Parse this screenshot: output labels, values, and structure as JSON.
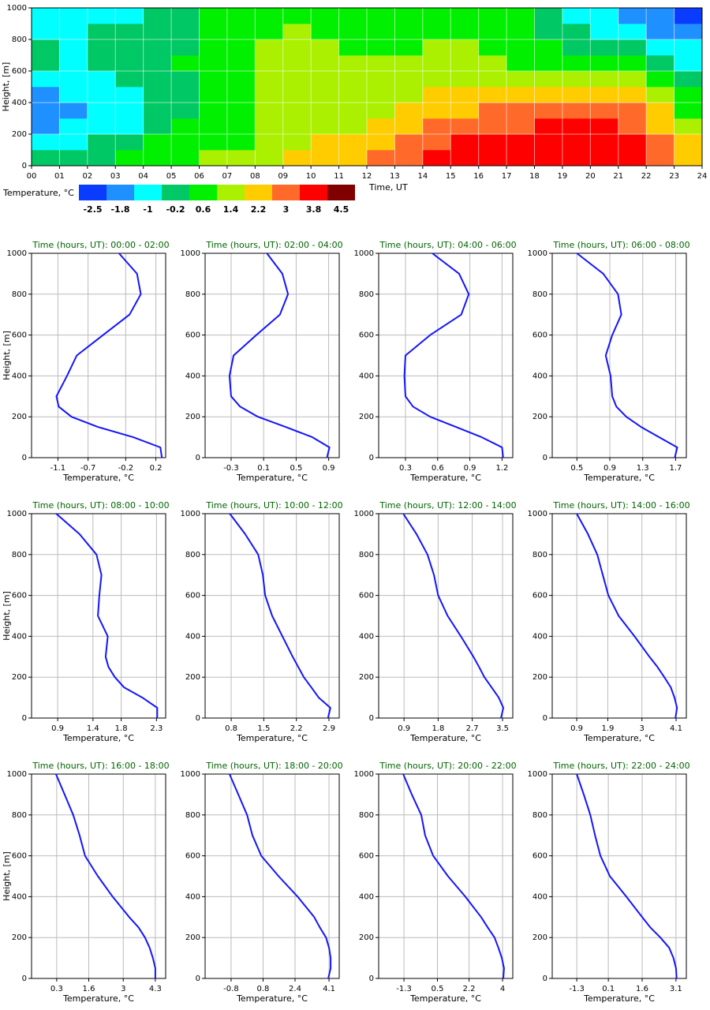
{
  "chart_data": [
    {
      "type": "heatmap",
      "xlabel": "Time, UT",
      "ylabel": "Height, [m]",
      "xlim": [
        0,
        24
      ],
      "ylim": [
        0,
        1000
      ],
      "xticks": [
        {
          "value": 0,
          "label": "00"
        },
        {
          "value": 1,
          "label": "01"
        },
        {
          "value": 2,
          "label": "02"
        },
        {
          "value": 3,
          "label": "03"
        },
        {
          "value": 4,
          "label": "04"
        },
        {
          "value": 5,
          "label": "05"
        },
        {
          "value": 6,
          "label": "06"
        },
        {
          "value": 7,
          "label": "07"
        },
        {
          "value": 8,
          "label": "08"
        },
        {
          "value": 9,
          "label": "09"
        },
        10,
        11,
        12,
        13,
        14,
        15,
        16,
        17,
        18,
        19,
        20,
        21,
        22,
        23,
        24
      ],
      "yticks": [
        0,
        200,
        400,
        600,
        800,
        1000
      ],
      "xbins": [
        0,
        1,
        2,
        3,
        4,
        5,
        6,
        7,
        8,
        9,
        10,
        11,
        12,
        13,
        14,
        15,
        16,
        17,
        18,
        19,
        20,
        21,
        22,
        23,
        24
      ],
      "ybins": [
        0,
        100,
        200,
        300,
        400,
        500,
        600,
        700,
        800,
        900,
        1000
      ],
      "values": [
        [
          -0.2,
          -1.0,
          -1.8,
          -1.8,
          -1.8,
          -1.0,
          -0.2,
          -0.2,
          -1.0,
          -1.0
        ],
        [
          -0.2,
          -1.0,
          -1.0,
          -1.8,
          -1.0,
          -1.0,
          -1.0,
          -1.0,
          -1.0,
          -1.0
        ],
        [
          -0.2,
          -0.2,
          -1.0,
          -1.0,
          -1.0,
          -1.0,
          -0.2,
          -0.2,
          -0.2,
          -1.0
        ],
        [
          0.6,
          -0.2,
          -1.0,
          -1.0,
          -1.0,
          -0.2,
          -0.2,
          -0.2,
          -0.2,
          -1.0
        ],
        [
          0.6,
          0.6,
          -0.2,
          -0.2,
          -0.2,
          -0.2,
          -0.2,
          -0.2,
          -0.2,
          -0.2
        ],
        [
          0.6,
          0.6,
          0.6,
          -0.2,
          -0.2,
          -0.2,
          0.6,
          -0.2,
          -0.2,
          -0.2
        ],
        [
          1.4,
          0.6,
          0.6,
          0.6,
          0.6,
          0.6,
          0.6,
          0.6,
          0.6,
          0.6
        ],
        [
          1.4,
          0.6,
          0.6,
          0.6,
          0.6,
          0.6,
          0.6,
          0.6,
          0.6,
          0.6
        ],
        [
          1.4,
          1.4,
          1.4,
          1.4,
          1.4,
          1.4,
          1.4,
          1.4,
          0.6,
          0.6
        ],
        [
          2.2,
          1.4,
          1.4,
          1.4,
          1.4,
          1.4,
          1.4,
          1.4,
          1.4,
          0.6
        ],
        [
          2.2,
          2.2,
          1.4,
          1.4,
          1.4,
          1.4,
          1.4,
          1.4,
          0.6,
          0.6
        ],
        [
          2.2,
          2.2,
          1.4,
          1.4,
          1.4,
          1.4,
          1.4,
          0.6,
          0.6,
          0.6
        ],
        [
          3.0,
          2.2,
          2.2,
          1.4,
          1.4,
          1.4,
          1.4,
          0.6,
          0.6,
          0.6
        ],
        [
          3.0,
          3.0,
          2.2,
          2.2,
          1.4,
          1.4,
          1.4,
          0.6,
          0.6,
          0.6
        ],
        [
          3.8,
          3.0,
          3.0,
          2.2,
          2.2,
          1.4,
          1.4,
          1.4,
          0.6,
          0.6
        ],
        [
          3.8,
          3.8,
          3.0,
          2.2,
          2.2,
          1.4,
          1.4,
          1.4,
          0.6,
          0.6
        ],
        [
          3.8,
          3.8,
          3.0,
          3.0,
          2.2,
          1.4,
          1.4,
          0.6,
          0.6,
          0.6
        ],
        [
          3.8,
          3.8,
          3.0,
          3.0,
          2.2,
          1.4,
          0.6,
          0.6,
          0.6,
          0.6
        ],
        [
          3.8,
          3.8,
          3.8,
          3.0,
          2.2,
          1.4,
          0.6,
          0.6,
          -0.2,
          -0.2
        ],
        [
          3.8,
          3.8,
          3.8,
          3.0,
          2.2,
          1.4,
          0.6,
          -0.2,
          -0.2,
          -1.0
        ],
        [
          3.8,
          3.8,
          3.8,
          3.0,
          2.2,
          1.4,
          0.6,
          -0.2,
          -1.0,
          -1.0
        ],
        [
          3.8,
          3.8,
          3.0,
          3.0,
          2.2,
          1.4,
          0.6,
          -0.2,
          -1.0,
          -1.8
        ],
        [
          3.0,
          3.0,
          2.2,
          2.2,
          1.4,
          0.6,
          -0.2,
          -1.0,
          -1.8,
          -1.8
        ],
        [
          2.2,
          2.2,
          1.4,
          0.6,
          0.6,
          -0.2,
          -1.0,
          -1.0,
          -1.8,
          -2.5
        ]
      ],
      "grid": true,
      "colorbar": {
        "label": "Temperature, °C",
        "levels": [
          -2.5,
          -1.8,
          -1.0,
          -0.2,
          0.6,
          1.4,
          2.2,
          3.0,
          3.8,
          4.5
        ],
        "colors": [
          "#0a3cff",
          "#1e90ff",
          "#00ffff",
          "#00c864",
          "#00f000",
          "#aaf000",
          "#ffcc00",
          "#ff6a2a",
          "#ff0000",
          "#800000"
        ]
      }
    },
    {
      "type": "line",
      "title": "Time (hours, UT): 00:00 - 02:00",
      "xlabel": "Temperature, °C",
      "ylabel": "Height, [m]",
      "color": "#1414ff",
      "grid": true,
      "xlim": [
        -1.45,
        0.33
      ],
      "xticks": [
        -1.1,
        -0.7,
        -0.2,
        0.2
      ],
      "ylim": [
        0,
        1000
      ],
      "yticks": [
        0,
        200,
        400,
        600,
        800,
        1000
      ],
      "heights": [
        0,
        50,
        100,
        150,
        200,
        250,
        300,
        400,
        500,
        600,
        700,
        800,
        900,
        1000
      ],
      "values": [
        0.28,
        0.26,
        -0.1,
        -0.57,
        -0.92,
        -1.09,
        -1.12,
        -0.98,
        -0.85,
        -0.5,
        -0.15,
        0.0,
        -0.05,
        -0.29
      ]
    },
    {
      "type": "line",
      "title": "Time (hours, UT): 02:00 - 04:00",
      "xlabel": "Temperature, °C",
      "color": "#1414ff",
      "grid": true,
      "xlim": [
        -0.62,
        1.03
      ],
      "xticks": [
        -0.3,
        0.1,
        0.5,
        0.9
      ],
      "ylim": [
        0,
        1000
      ],
      "yticks": [
        0,
        200,
        400,
        600,
        800,
        1000
      ],
      "heights": [
        0,
        50,
        100,
        150,
        200,
        250,
        300,
        400,
        500,
        600,
        700,
        800,
        900,
        1000
      ],
      "values": [
        0.88,
        0.91,
        0.7,
        0.37,
        0.03,
        -0.19,
        -0.3,
        -0.32,
        -0.27,
        0.01,
        0.3,
        0.4,
        0.33,
        0.14
      ]
    },
    {
      "type": "line",
      "title": "Time (hours, UT): 04:00 - 06:00",
      "xlabel": "Temperature, °C",
      "color": "#1414ff",
      "grid": true,
      "xlim": [
        0.05,
        1.3
      ],
      "xticks": [
        0.3,
        0.6,
        0.9,
        1.2
      ],
      "ylim": [
        0,
        1000
      ],
      "yticks": [
        0,
        200,
        400,
        600,
        800,
        1000
      ],
      "heights": [
        0,
        50,
        100,
        150,
        200,
        250,
        300,
        400,
        500,
        600,
        700,
        800,
        900,
        1000
      ],
      "values": [
        1.21,
        1.2,
        1.01,
        0.77,
        0.53,
        0.37,
        0.3,
        0.29,
        0.3,
        0.53,
        0.82,
        0.89,
        0.8,
        0.55
      ]
    },
    {
      "type": "line",
      "title": "Time (hours, UT): 06:00 - 08:00",
      "xlabel": "Temperature, °C",
      "color": "#1414ff",
      "grid": true,
      "xlim": [
        0.2,
        1.83
      ],
      "xticks": [
        0.5,
        0.9,
        1.3,
        1.7
      ],
      "ylim": [
        0,
        1000
      ],
      "yticks": [
        0,
        200,
        400,
        600,
        800,
        1000
      ],
      "heights": [
        0,
        50,
        100,
        150,
        200,
        250,
        300,
        400,
        500,
        600,
        700,
        800,
        900,
        1000
      ],
      "values": [
        1.69,
        1.72,
        1.5,
        1.28,
        1.1,
        0.98,
        0.93,
        0.91,
        0.85,
        0.93,
        1.04,
        1.0,
        0.82,
        0.5
      ]
    },
    {
      "type": "line",
      "title": "Time (hours, UT): 08:00 - 10:00",
      "xlabel": "Temperature, °C",
      "ylabel": "Height, [m]",
      "color": "#1414ff",
      "grid": true,
      "xlim": [
        0.53,
        2.43
      ],
      "xticks": [
        0.9,
        1.4,
        1.8,
        2.3
      ],
      "ylim": [
        0,
        1000
      ],
      "yticks": [
        0,
        200,
        400,
        600,
        800,
        1000
      ],
      "heights": [
        0,
        50,
        100,
        150,
        200,
        250,
        300,
        400,
        500,
        600,
        700,
        800,
        900,
        1000
      ],
      "values": [
        2.31,
        2.31,
        2.1,
        1.84,
        1.71,
        1.62,
        1.58,
        1.61,
        1.47,
        1.49,
        1.52,
        1.45,
        1.21,
        0.88
      ]
    },
    {
      "type": "line",
      "title": "Time (hours, UT): 10:00 - 12:00",
      "xlabel": "Temperature, °C",
      "color": "#1414ff",
      "grid": true,
      "xlim": [
        0.24,
        3.12
      ],
      "xticks": [
        0.8,
        1.5,
        2.2,
        2.9
      ],
      "ylim": [
        0,
        1000
      ],
      "yticks": [
        0,
        200,
        400,
        600,
        800,
        1000
      ],
      "heights": [
        0,
        50,
        100,
        150,
        200,
        250,
        300,
        400,
        500,
        600,
        700,
        800,
        900,
        1000
      ],
      "values": [
        2.88,
        2.93,
        2.68,
        2.52,
        2.36,
        2.24,
        2.12,
        1.9,
        1.68,
        1.53,
        1.48,
        1.38,
        1.1,
        0.77
      ]
    },
    {
      "type": "line",
      "title": "Time (hours, UT): 12:00 - 14:00",
      "xlabel": "Temperature, °C",
      "color": "#1414ff",
      "grid": true,
      "xlim": [
        0.23,
        3.77
      ],
      "xticks": [
        0.9,
        1.8,
        2.7,
        3.5
      ],
      "ylim": [
        0,
        1000
      ],
      "yticks": [
        0,
        200,
        400,
        600,
        800,
        1000
      ],
      "heights": [
        0,
        50,
        100,
        150,
        200,
        250,
        300,
        400,
        500,
        600,
        700,
        800,
        900,
        1000
      ],
      "values": [
        3.46,
        3.52,
        3.4,
        3.21,
        3.02,
        2.88,
        2.73,
        2.4,
        2.05,
        1.8,
        1.69,
        1.52,
        1.23,
        0.88
      ]
    },
    {
      "type": "line",
      "title": "Time (hours, UT): 14:00 - 16:00",
      "xlabel": "Temperature, °C",
      "color": "#1414ff",
      "grid": true,
      "xlim": [
        0.11,
        4.43
      ],
      "xticks": [
        0.9,
        1.9,
        3.0,
        4.1
      ],
      "ylim": [
        0,
        1000
      ],
      "yticks": [
        0,
        200,
        400,
        600,
        800,
        1000
      ],
      "heights": [
        0,
        50,
        100,
        150,
        200,
        250,
        300,
        400,
        500,
        600,
        700,
        800,
        900,
        1000
      ],
      "values": [
        4.08,
        4.13,
        4.05,
        3.93,
        3.72,
        3.5,
        3.24,
        2.76,
        2.25,
        1.92,
        1.74,
        1.56,
        1.26,
        0.9
      ]
    },
    {
      "type": "line",
      "title": "Time (hours, UT): 16:00 - 18:00",
      "xlabel": "Temperature, °C",
      "ylabel": "Height, [m]",
      "color": "#1414ff",
      "grid": true,
      "xlim": [
        -0.72,
        4.72
      ],
      "xticks": [
        0.3,
        1.6,
        3.0,
        4.3
      ],
      "ylim": [
        0,
        1000
      ],
      "yticks": [
        0,
        200,
        400,
        600,
        800,
        1000
      ],
      "heights": [
        0,
        50,
        100,
        150,
        200,
        250,
        300,
        400,
        500,
        600,
        700,
        800,
        900,
        1000
      ],
      "values": [
        4.3,
        4.3,
        4.2,
        4.07,
        3.88,
        3.62,
        3.24,
        2.57,
        1.97,
        1.45,
        1.23,
        0.97,
        0.62,
        0.27
      ]
    },
    {
      "type": "line",
      "title": "Time (hours, UT): 18:00 - 20:00",
      "xlabel": "Temperature, °C",
      "color": "#1414ff",
      "grid": true,
      "xlim": [
        -2.1,
        4.61
      ],
      "xticks": [
        -0.8,
        0.8,
        2.4,
        4.1
      ],
      "ylim": [
        0,
        1000
      ],
      "yticks": [
        0,
        200,
        400,
        600,
        800,
        1000
      ],
      "heights": [
        0,
        50,
        100,
        150,
        200,
        250,
        300,
        400,
        500,
        600,
        700,
        800,
        900,
        1000
      ],
      "values": [
        4.06,
        4.18,
        4.18,
        4.1,
        3.95,
        3.64,
        3.36,
        2.53,
        1.58,
        0.71,
        0.27,
        0.0,
        -0.44,
        -0.88
      ]
    },
    {
      "type": "line",
      "title": "Time (hours, UT): 20:00 - 22:00",
      "xlabel": "Temperature, °C",
      "color": "#1414ff",
      "grid": true,
      "xlim": [
        -2.66,
        4.55
      ],
      "xticks": [
        -1.3,
        0.5,
        2.2,
        4.0
      ],
      "ylim": [
        0,
        1000
      ],
      "yticks": [
        0,
        200,
        400,
        600,
        800,
        1000
      ],
      "heights": [
        0,
        50,
        100,
        150,
        200,
        250,
        300,
        400,
        500,
        600,
        700,
        800,
        900,
        1000
      ],
      "values": [
        4.04,
        4.08,
        3.96,
        3.78,
        3.57,
        3.2,
        2.85,
        2.0,
        1.07,
        0.27,
        -0.16,
        -0.37,
        -0.88,
        -1.34
      ]
    },
    {
      "type": "line",
      "title": "Time (hours, UT): 22:00 - 24:00",
      "xlabel": "Temperature, °C",
      "color": "#1414ff",
      "grid": true,
      "xlim": [
        -2.39,
        3.56
      ],
      "xticks": [
        -1.3,
        0.1,
        1.6,
        3.1
      ],
      "ylim": [
        0,
        1000
      ],
      "yticks": [
        0,
        200,
        400,
        600,
        800,
        1000
      ],
      "heights": [
        0,
        50,
        100,
        150,
        200,
        250,
        300,
        400,
        500,
        600,
        700,
        800,
        900,
        1000
      ],
      "values": [
        3.13,
        3.1,
        2.99,
        2.8,
        2.41,
        1.96,
        1.6,
        0.9,
        0.17,
        -0.25,
        -0.49,
        -0.7,
        -0.99,
        -1.3
      ]
    }
  ]
}
